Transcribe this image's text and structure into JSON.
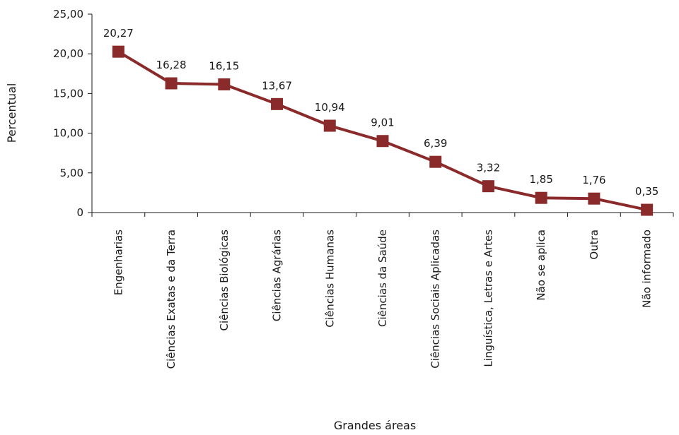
{
  "chart_data": {
    "type": "line",
    "categories": [
      "Engenharias",
      "Ciências Exatas e da Terra",
      "Ciências Biológicas",
      "Ciências Agrárias",
      "Ciências Humanas",
      "Ciências da Saúde",
      "Ciências Sociais Aplicadas",
      "Linguística, Letras e Artes",
      "Não se aplica",
      "Outra",
      "Não informado"
    ],
    "values": [
      20.27,
      16.28,
      16.15,
      13.67,
      10.94,
      9.01,
      6.39,
      3.32,
      1.85,
      1.76,
      0.35
    ],
    "data_labels": [
      "20,27",
      "16,28",
      "16,15",
      "13,67",
      "10,94",
      "9,01",
      "6,39",
      "3,32",
      "1,85",
      "1,76",
      "0,35"
    ],
    "y_ticks": [
      0,
      5,
      10,
      15,
      20,
      25
    ],
    "y_tick_labels": [
      "0",
      "5,00",
      "10,00",
      "15,00",
      "20,00",
      "25,00"
    ],
    "ylim": [
      0,
      25
    ],
    "xlabel": "Grandes áreas",
    "ylabel": "Percentual",
    "title": "",
    "grid": false,
    "legend": "none",
    "marker": "square",
    "series_color": "#8b2a2a",
    "axis_color": "#1a1a1a"
  }
}
